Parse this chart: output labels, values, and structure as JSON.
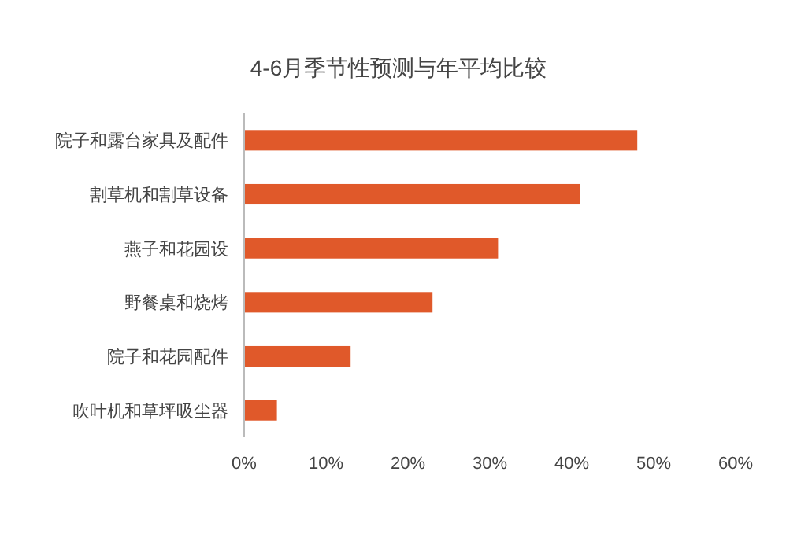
{
  "chart_data": {
    "type": "bar",
    "orientation": "horizontal",
    "title": "4-6月季节性预测与年平均比较",
    "categories": [
      "院子和露台家具及配件",
      "割草机和割草设备",
      "燕子和花园设",
      "野餐桌和烧烤",
      "院子和花园配件",
      "吹叶机和草坪吸尘器"
    ],
    "values": [
      48,
      41,
      31,
      23,
      13,
      4
    ],
    "color": "#e0592a",
    "xlim": [
      0,
      60
    ],
    "xticks": [
      {
        "value": 0,
        "label": "0%"
      },
      {
        "value": 10,
        "label": "10%"
      },
      {
        "value": 20,
        "label": "20%"
      },
      {
        "value": 30,
        "label": "30%"
      },
      {
        "value": 40,
        "label": "40%"
      },
      {
        "value": 50,
        "label": "50%"
      },
      {
        "value": 60,
        "label": "60%"
      }
    ],
    "grid": false
  }
}
